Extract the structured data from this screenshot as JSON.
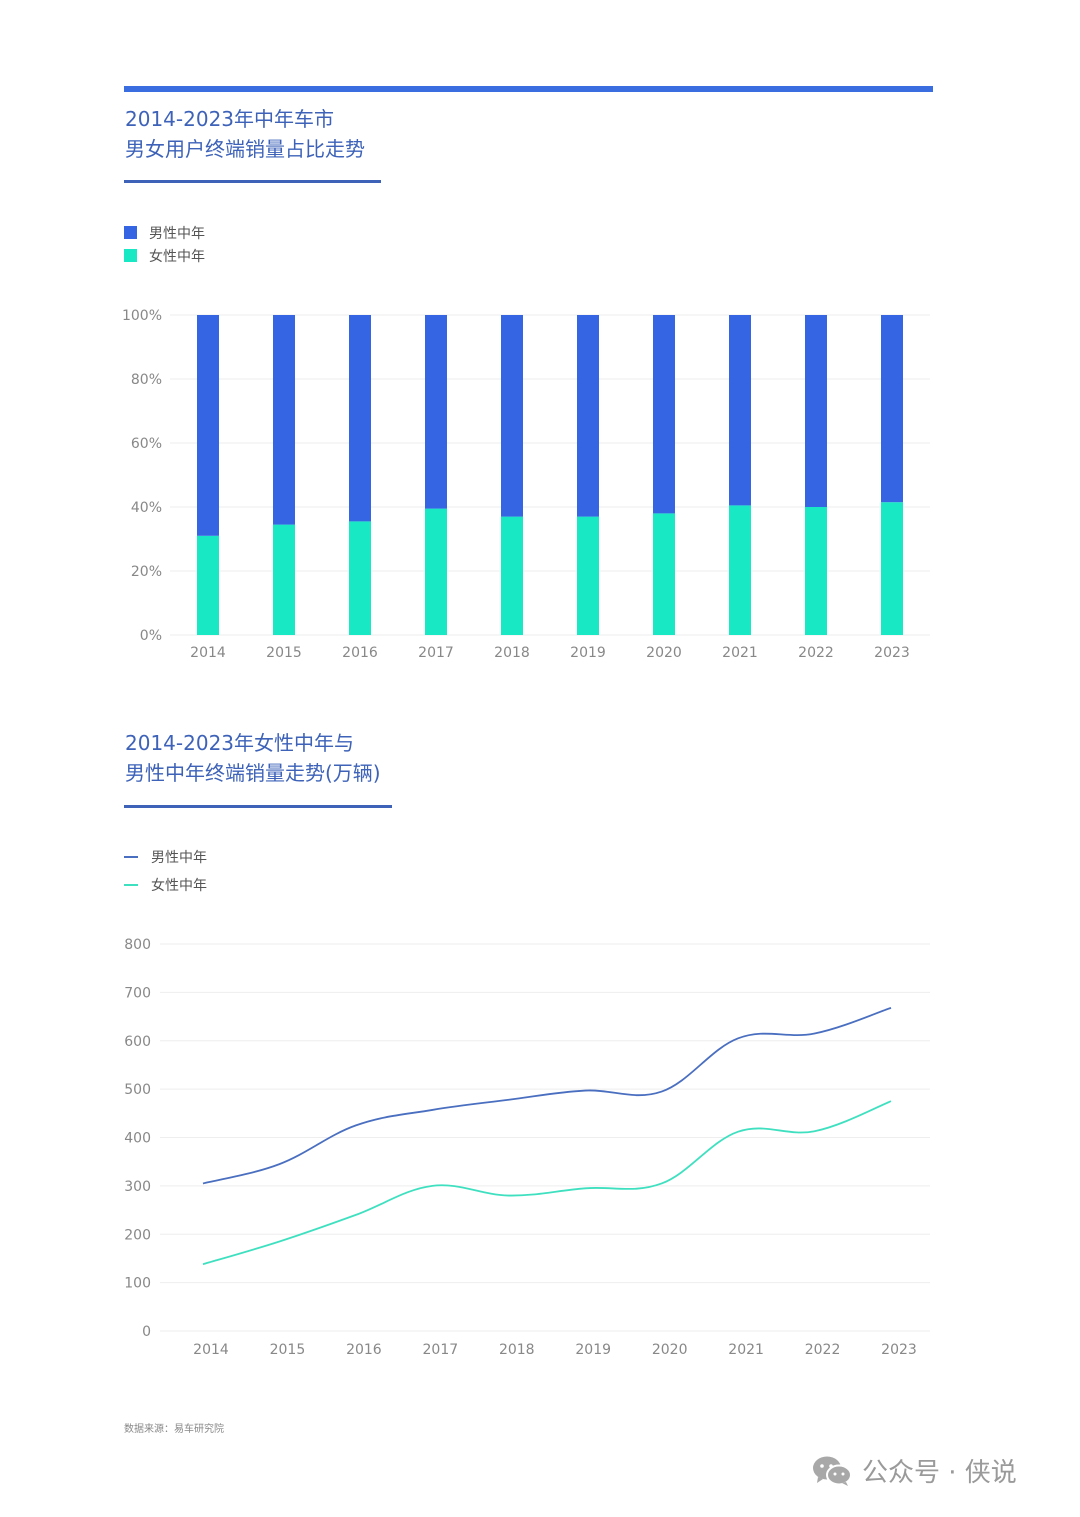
{
  "colors": {
    "accent": "#3a6ee0",
    "male": "#3565e3",
    "female": "#19e8c4",
    "male_line": "#4a6fc0",
    "female_line": "#3fe0c0",
    "title": "#3d62b8",
    "grid": "#eeeeee"
  },
  "chart1": {
    "title_line1": "2014-2023年中年车市",
    "title_line2": "男女用户终端销量占比走势",
    "legend": [
      "男性中年",
      "女性中年"
    ]
  },
  "chart2": {
    "title_line1": "2014-2023年女性中年与",
    "title_line2": "男性中年终端销量走势(万辆)",
    "legend": [
      "男性中年",
      "女性中年"
    ]
  },
  "chart_data": [
    {
      "type": "bar",
      "stacked": true,
      "categories": [
        "2014",
        "2015",
        "2016",
        "2017",
        "2018",
        "2019",
        "2020",
        "2021",
        "2022",
        "2023"
      ],
      "series": [
        {
          "name": "女性中年",
          "values": [
            31,
            34.5,
            35.5,
            39.5,
            37,
            37,
            38,
            40.5,
            40,
            41.5
          ]
        },
        {
          "name": "男性中年",
          "values": [
            69,
            65.5,
            64.5,
            60.5,
            63,
            63,
            62,
            59.5,
            60,
            58.5
          ]
        }
      ],
      "yticks": [
        "0%",
        "20%",
        "40%",
        "60%",
        "80%",
        "100%"
      ],
      "ylim": [
        0,
        100
      ],
      "grid": true,
      "legend_position": "top-left"
    },
    {
      "type": "line",
      "categories": [
        "2014",
        "2015",
        "2016",
        "2017",
        "2018",
        "2019",
        "2020",
        "2021",
        "2022",
        "2023"
      ],
      "series": [
        {
          "name": "男性中年",
          "values": [
            305,
            345,
            425,
            457,
            478,
            497,
            495,
            605,
            615,
            668
          ]
        },
        {
          "name": "女性中年",
          "values": [
            138,
            185,
            240,
            300,
            280,
            295,
            305,
            412,
            413,
            475
          ]
        }
      ],
      "yticks": [
        "0",
        "100",
        "200",
        "300",
        "400",
        "500",
        "600",
        "700",
        "800"
      ],
      "ylim": [
        0,
        800
      ],
      "grid": true,
      "legend_position": "top-left"
    }
  ],
  "footer": {
    "source": "数据来源：易车研究院",
    "watermark": "公众号 · 侠说",
    "watermark_icon": "wechat-icon"
  }
}
